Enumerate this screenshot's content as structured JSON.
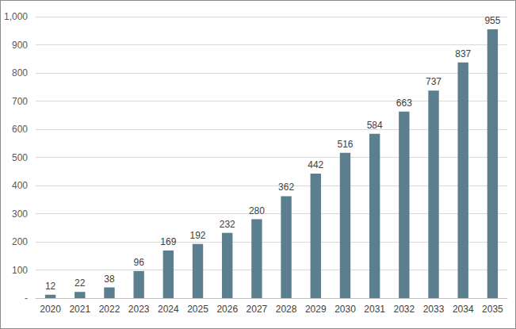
{
  "chart_data": {
    "type": "bar",
    "categories": [
      "2020",
      "2021",
      "2022",
      "2023",
      "2024",
      "2025",
      "2026",
      "2027",
      "2028",
      "2029",
      "2030",
      "2031",
      "2032",
      "2033",
      "2034",
      "2035"
    ],
    "values": [
      12,
      22,
      38,
      96,
      169,
      192,
      232,
      280,
      362,
      442,
      516,
      584,
      663,
      737,
      837,
      955
    ],
    "color": "#5b7f8e",
    "ylim": [
      0,
      1000
    ],
    "yticks": [
      {
        "value": 0,
        "label": "-"
      },
      100,
      200,
      300,
      400,
      500,
      600,
      700,
      800,
      900,
      {
        "value": 1000,
        "label": "1,000"
      }
    ],
    "grid": true,
    "data_labels": true
  }
}
